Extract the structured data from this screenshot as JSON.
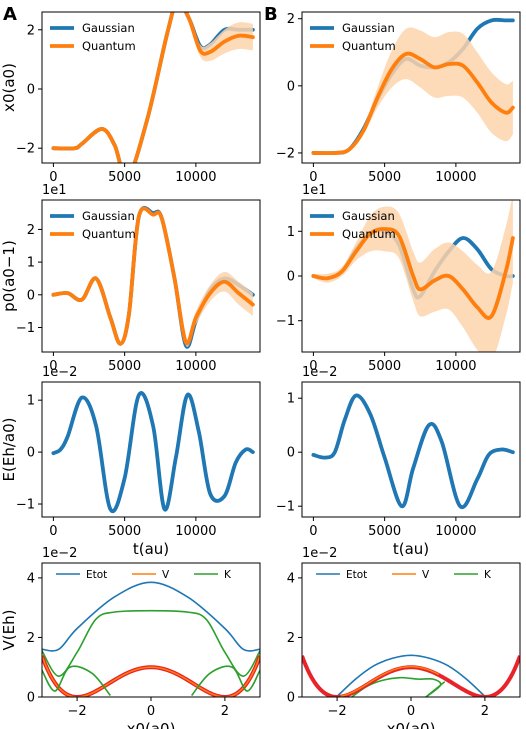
{
  "figure": {
    "panel_labels": [
      "A",
      "B"
    ]
  },
  "colors": {
    "blue": "#1f77b4",
    "orange": "#ff7f0e",
    "green": "#2ca02c",
    "red": "#e8232a",
    "band_orange": "#fdd3ab",
    "band_blue": "#a9c8e2"
  },
  "chart_data": [
    {
      "id": "A_x",
      "type": "line",
      "panel": "A",
      "ylabel": "x0(a0)",
      "xlim": [
        -800,
        14500
      ],
      "ylim": [
        -2.5,
        2.6
      ],
      "xticks": [
        0,
        5000,
        10000
      ],
      "xticklabels": [
        "0",
        "5000",
        "10000"
      ],
      "yticks": [
        -2,
        0,
        2
      ],
      "yticklabels": [
        "−2",
        "0",
        "2"
      ],
      "legend": [
        "Gaussian",
        "Quantum"
      ],
      "series": [
        {
          "name": "Gaussian",
          "x": [
            0,
            1500,
            2000,
            3400,
            4300,
            5200,
            6600,
            8000,
            8700,
            9500,
            10300,
            11000,
            12000,
            13000,
            14000
          ],
          "y": [
            -2,
            -2,
            -1.85,
            -1.35,
            -1.9,
            -3,
            -1,
            1.9,
            2.95,
            2.4,
            1.45,
            1.5,
            2,
            2,
            2
          ]
        },
        {
          "name": "Quantum",
          "x": [
            0,
            1500,
            2000,
            3400,
            4300,
            5200,
            6600,
            8000,
            8700,
            9500,
            10300,
            11000,
            12000,
            13000,
            14000
          ],
          "y": [
            -2,
            -2,
            -1.85,
            -1.35,
            -1.9,
            -3,
            -1,
            1.9,
            2.95,
            2.4,
            1.3,
            1.25,
            1.6,
            1.8,
            1.75
          ],
          "band": [
            0,
            0,
            0.02,
            0.05,
            0.05,
            0.05,
            0.05,
            0.05,
            0.07,
            0.15,
            0.2,
            0.3,
            0.4,
            0.45,
            0.45
          ]
        }
      ]
    },
    {
      "id": "B_x",
      "type": "line",
      "panel": "B",
      "ylabel": "",
      "xlim": [
        -800,
        14500
      ],
      "ylim": [
        -2.3,
        2.2
      ],
      "xticks": [
        0,
        5000,
        10000
      ],
      "xticklabels": [
        "0",
        "5000",
        "10000"
      ],
      "yticks": [
        -2,
        0,
        2
      ],
      "yticklabels": [
        "−2",
        "0",
        "2"
      ],
      "legend": [
        "Gaussian",
        "Quantum"
      ],
      "series": [
        {
          "name": "Gaussian",
          "x": [
            0,
            1500,
            2500,
            3500,
            4500,
            5500,
            6500,
            7500,
            8500,
            9500,
            10500,
            11500,
            12500,
            13500,
            14000
          ],
          "y": [
            -2,
            -2,
            -1.9,
            -1.3,
            -0.4,
            0.35,
            0.8,
            0.6,
            0.55,
            0.7,
            1.1,
            1.7,
            1.95,
            1.95,
            1.95
          ]
        },
        {
          "name": "Quantum",
          "x": [
            0,
            1500,
            2500,
            3500,
            4500,
            5500,
            6500,
            7500,
            8500,
            9500,
            10500,
            11500,
            12500,
            13500,
            14000
          ],
          "y": [
            -2,
            -2,
            -1.9,
            -1.35,
            -0.35,
            0.5,
            0.95,
            0.8,
            0.55,
            0.65,
            0.6,
            0.1,
            -0.5,
            -0.8,
            -0.65
          ],
          "band": [
            0,
            0,
            0.05,
            0.1,
            0.3,
            0.55,
            0.75,
            0.85,
            0.9,
            0.95,
            0.95,
            0.9,
            0.9,
            0.85,
            0.8
          ]
        }
      ]
    },
    {
      "id": "A_p",
      "type": "line",
      "panel": "A",
      "ylabel": "p0(a0−1)",
      "multiplier": "1e1",
      "xlim": [
        -800,
        14500
      ],
      "ylim": [
        -1.75,
        2.9
      ],
      "xticks": [
        0,
        5000,
        10000
      ],
      "xticklabels": [
        "0",
        "5000",
        "10000"
      ],
      "yticks": [
        -1,
        0,
        1,
        2
      ],
      "yticklabels": [
        "−1",
        "0",
        "1",
        "2"
      ],
      "legend": [
        "Gaussian",
        "Quantum"
      ],
      "series": [
        {
          "name": "Gaussian",
          "x": [
            0,
            1000,
            2000,
            3000,
            4000,
            4700,
            5300,
            6000,
            7000,
            7600,
            8500,
            9300,
            10000,
            11000,
            12000,
            13000,
            14000
          ],
          "y": [
            0,
            0.05,
            -0.15,
            0.5,
            -0.7,
            -1.5,
            -0.6,
            2.4,
            2.5,
            2.35,
            0.5,
            -1.55,
            -0.8,
            0.15,
            0.5,
            0.3,
            0
          ]
        },
        {
          "name": "Quantum",
          "x": [
            0,
            1000,
            2000,
            3000,
            4000,
            4700,
            5300,
            6000,
            7000,
            7600,
            8500,
            9300,
            10000,
            11000,
            12000,
            13000,
            14000
          ],
          "y": [
            0,
            0.05,
            -0.15,
            0.5,
            -0.7,
            -1.5,
            -0.6,
            2.4,
            2.45,
            2.35,
            0.5,
            -1.45,
            -0.7,
            0.05,
            0.4,
            0.05,
            -0.3
          ],
          "band": [
            0.05,
            0.05,
            0.05,
            0.05,
            0.05,
            0.05,
            0.05,
            0.05,
            0.05,
            0.05,
            0.07,
            0.1,
            0.2,
            0.25,
            0.3,
            0.35,
            0.35
          ]
        }
      ]
    },
    {
      "id": "B_p",
      "type": "line",
      "panel": "B",
      "ylabel": "",
      "multiplier": "1e1",
      "xlim": [
        -800,
        14500
      ],
      "ylim": [
        -1.7,
        1.7
      ],
      "xticks": [
        0,
        5000,
        10000
      ],
      "xticklabels": [
        "0",
        "5000",
        "10000"
      ],
      "yticks": [
        -1,
        0,
        1
      ],
      "yticklabels": [
        "−1",
        "0",
        "1"
      ],
      "legend": [
        "Gaussian",
        "Quantum"
      ],
      "series": [
        {
          "name": "Gaussian",
          "x": [
            0,
            1000,
            2000,
            3000,
            4000,
            5000,
            6000,
            7000,
            7500,
            8500,
            9500,
            10500,
            11500,
            12500,
            13500,
            14000
          ],
          "y": [
            0,
            -0.05,
            0.1,
            0.6,
            0.95,
            1.0,
            0.7,
            -0.3,
            -0.45,
            0.1,
            0.55,
            0.85,
            0.6,
            0.15,
            0,
            0
          ]
        },
        {
          "name": "Quantum",
          "x": [
            0,
            1000,
            2000,
            3000,
            4000,
            5000,
            6000,
            7000,
            7500,
            8500,
            9500,
            10500,
            11500,
            12500,
            13500,
            14000
          ],
          "y": [
            0,
            -0.05,
            0.1,
            0.55,
            0.95,
            1.05,
            0.9,
            0,
            -0.3,
            -0.1,
            0.0,
            -0.3,
            -0.7,
            -0.9,
            0.1,
            0.85
          ],
          "band": [
            0.05,
            0.1,
            0.1,
            0.2,
            0.4,
            0.5,
            0.5,
            0.55,
            0.6,
            0.7,
            0.75,
            0.85,
            0.95,
            1.0,
            1.0,
            1.0
          ]
        }
      ]
    },
    {
      "id": "A_E",
      "type": "line",
      "panel": "A",
      "ylabel": "E(Eh/a0)",
      "multiplier": "1e−2",
      "xlabel": "t(au)",
      "xlim": [
        -800,
        14500
      ],
      "ylim": [
        -1.25,
        1.35
      ],
      "xticks": [
        0,
        5000,
        10000
      ],
      "xticklabels": [
        "0",
        "5000",
        "10000"
      ],
      "yticks": [
        -1,
        0,
        1
      ],
      "yticklabels": [
        "−1",
        "0",
        "1"
      ],
      "series": [
        {
          "name": "",
          "x": [
            0,
            500,
            1000,
            2000,
            3000,
            4000,
            5000,
            6000,
            7000,
            7800,
            8600,
            9400,
            10200,
            11000,
            12000,
            12800,
            13500,
            14000
          ],
          "y": [
            -0.02,
            0.05,
            0.3,
            1.05,
            0.5,
            -1.1,
            -0.5,
            1.1,
            0.5,
            -1.1,
            -0.1,
            1.1,
            0.4,
            -0.8,
            -0.85,
            -0.2,
            0.05,
            0
          ]
        }
      ]
    },
    {
      "id": "B_E",
      "type": "line",
      "panel": "B",
      "ylabel": "",
      "multiplier": "1e−2",
      "xlabel": "t(au)",
      "xlim": [
        -800,
        14500
      ],
      "ylim": [
        -1.2,
        1.3
      ],
      "xticks": [
        0,
        5000,
        10000
      ],
      "xticklabels": [
        "0",
        "5000",
        "10000"
      ],
      "yticks": [
        -1,
        0,
        1
      ],
      "yticklabels": [
        "−1",
        "0",
        "1"
      ],
      "series": [
        {
          "name": "",
          "x": [
            0,
            800,
            1500,
            2200,
            3000,
            4000,
            5000,
            6200,
            7000,
            8100,
            9000,
            10300,
            11500,
            12300,
            13200,
            14000
          ],
          "y": [
            -0.05,
            -0.1,
            0.0,
            0.6,
            1.05,
            0.7,
            -0.1,
            -1.0,
            -0.3,
            0.5,
            0.2,
            -1.0,
            -0.5,
            -0.05,
            0.05,
            0
          ]
        }
      ]
    },
    {
      "id": "A_V",
      "type": "line",
      "panel": "A",
      "ylabel": "V(Eh)",
      "multiplier": "1e−2",
      "xlabel": "x0(a0)",
      "xlim": [
        -2.95,
        2.95
      ],
      "ylim": [
        0,
        4.5
      ],
      "xticks": [
        -2,
        0,
        2
      ],
      "xticklabels": [
        "−2",
        "0",
        "2"
      ],
      "yticks": [
        0,
        2,
        4
      ],
      "yticklabels": [
        "0",
        "2",
        "4"
      ],
      "legend": [
        "Etot",
        "V",
        "K"
      ],
      "series": [
        {
          "name": "Etot",
          "x": [
            -2.95,
            -2.5,
            -2,
            -1,
            0,
            1,
            2,
            2.5,
            2.95
          ],
          "y": [
            1.6,
            1.6,
            2.3,
            3.35,
            3.85,
            3.35,
            2.3,
            1.6,
            1.6
          ]
        },
        {
          "name": "K",
          "x": [
            -2.95,
            -2.5,
            -2,
            -1.5,
            -1,
            0,
            1,
            1.5,
            2,
            2.5,
            2.95
          ],
          "y": [
            1.55,
            0.7,
            1.5,
            2.6,
            2.85,
            2.9,
            2.85,
            2.6,
            1.5,
            0.7,
            1.55
          ]
        }
      ]
    },
    {
      "id": "B_V",
      "type": "line",
      "panel": "B",
      "ylabel": "",
      "multiplier": "1e−2",
      "xlabel": "x0(a0)",
      "xlim": [
        -2.95,
        2.95
      ],
      "ylim": [
        0,
        4.5
      ],
      "xticks": [
        -2,
        0,
        2
      ],
      "xticklabels": [
        "−2",
        "0",
        "2"
      ],
      "yticks": [
        0,
        2,
        4
      ],
      "yticklabels": [
        "0",
        "2",
        "4"
      ],
      "legend": [
        "Etot",
        "V",
        "K"
      ],
      "series": [
        {
          "name": "Etot",
          "x": [
            -2,
            -1.5,
            -1,
            -0.5,
            0,
            0.5,
            1,
            1.5,
            2
          ],
          "y": [
            0.02,
            0.6,
            1.05,
            1.3,
            1.4,
            1.3,
            1.05,
            0.6,
            0.02
          ]
        },
        {
          "name": "K",
          "x": [
            -1.6,
            -1.2,
            -0.8,
            -0.3,
            0.2,
            0.6,
            0.8,
            0.4,
            0.9
          ],
          "y": [
            0,
            0.35,
            0.55,
            0.65,
            0.6,
            0.6,
            0.4,
            0.0,
            0.5
          ]
        }
      ]
    }
  ]
}
